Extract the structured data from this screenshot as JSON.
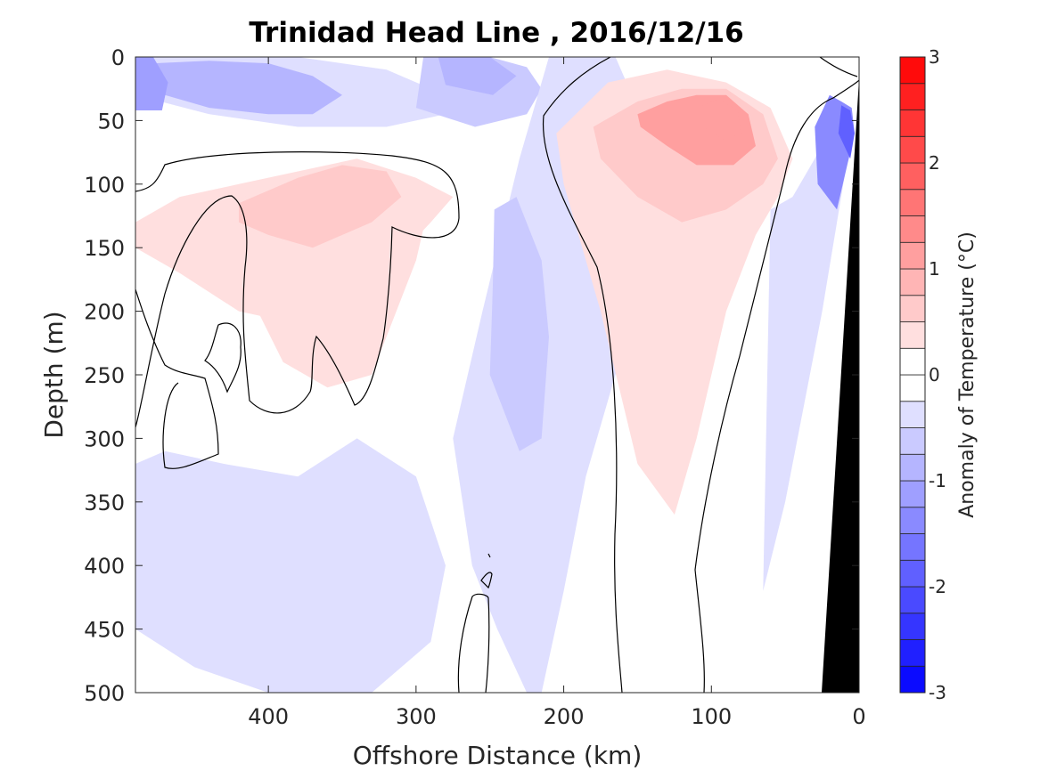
{
  "chart_data": {
    "type": "heatmap",
    "title": "Trinidad Head Line , 2016/12/16",
    "xlabel": "Offshore Distance (km)",
    "ylabel": "Depth (m)",
    "colorbar_label": "Anomaly of Temperature (°C)",
    "x_axis": {
      "range": [
        490,
        0
      ],
      "reversed": true,
      "ticks": [
        400,
        300,
        200,
        100,
        0
      ]
    },
    "y_axis": {
      "range": [
        0,
        500
      ],
      "reversed": true,
      "ticks": [
        0,
        50,
        100,
        150,
        200,
        250,
        300,
        350,
        400,
        450,
        500
      ]
    },
    "colorbar": {
      "range": [
        -3,
        3
      ],
      "ticks": [
        3,
        2,
        1,
        0,
        -1,
        -2,
        -3
      ],
      "levels": 24,
      "cmap": "blue-white-red",
      "position": "right"
    },
    "contour_level": 0,
    "bathymetry_color": "#000000",
    "grid": false,
    "features": [
      {
        "kind": "anomaly",
        "x": [
          490,
          440,
          380,
          320,
          280,
          280,
          320,
          380,
          440,
          490
        ],
        "y": [
          0,
          0,
          0,
          10,
          30,
          45,
          55,
          55,
          45,
          30
        ],
        "value": -0.5
      },
      {
        "kind": "anomaly",
        "x": [
          478,
          440,
          400,
          370,
          350,
          370,
          400,
          440,
          470
        ],
        "y": [
          5,
          3,
          5,
          15,
          30,
          45,
          45,
          40,
          30
        ],
        "value": -0.8
      },
      {
        "kind": "anomaly",
        "x": [
          490,
          478,
          468,
          472,
          490
        ],
        "y": [
          0,
          0,
          20,
          42,
          42
        ],
        "value": -1.1
      },
      {
        "kind": "anomaly",
        "x": [
          295,
          250,
          225,
          215,
          225,
          260,
          300
        ],
        "y": [
          0,
          0,
          8,
          25,
          45,
          55,
          40
        ],
        "value": -0.6
      },
      {
        "kind": "anomaly",
        "x": [
          285,
          250,
          232,
          248,
          280
        ],
        "y": [
          0,
          0,
          15,
          30,
          22
        ],
        "value": -0.9
      },
      {
        "kind": "anomaly",
        "x": [
          210,
          165,
          150,
          150,
          160,
          185,
          200,
          215,
          225,
          245,
          262,
          275,
          255,
          230
        ],
        "y": [
          0,
          0,
          40,
          120,
          230,
          330,
          420,
          500,
          500,
          450,
          400,
          300,
          200,
          80
        ],
        "value": -0.4
      },
      {
        "kind": "anomaly",
        "x": [
          247,
          232,
          215,
          210,
          215,
          230,
          250,
          248
        ],
        "y": [
          120,
          110,
          160,
          220,
          300,
          310,
          250,
          180
        ],
        "value": -0.7
      },
      {
        "kind": "anomaly",
        "x": [
          490,
          470,
          430,
          380,
          340,
          300,
          280,
          290,
          330,
          400,
          450,
          490
        ],
        "y": [
          320,
          310,
          320,
          330,
          300,
          330,
          400,
          460,
          500,
          500,
          480,
          450
        ],
        "value": -0.4
      },
      {
        "kind": "anomaly",
        "x": [
          440,
          400,
          350,
          320,
          310,
          330,
          360,
          400,
          440
        ],
        "y": [
          420,
          400,
          380,
          390,
          420,
          460,
          500,
          500,
          480
        ],
        "value": -0.5
      },
      {
        "kind": "anomaly",
        "x": [
          60,
          45,
          30,
          18,
          5,
          25,
          50,
          65
        ],
        "y": [
          120,
          110,
          80,
          50,
          60,
          200,
          350,
          420
        ],
        "value": -0.5
      },
      {
        "kind": "anomaly",
        "x": [
          20,
          12,
          5,
          3,
          15,
          28,
          30
        ],
        "y": [
          30,
          35,
          40,
          60,
          120,
          100,
          55
        ],
        "value": -1.3
      },
      {
        "kind": "anomaly",
        "x": [
          12,
          6,
          3,
          6,
          14
        ],
        "y": [
          38,
          42,
          60,
          80,
          60
        ],
        "value": -1.9
      },
      {
        "kind": "anomaly",
        "x": [
          490,
          460,
          420,
          380,
          340,
          300,
          275,
          290,
          330,
          380,
          420,
          460,
          490
        ],
        "y": [
          130,
          110,
          100,
          90,
          80,
          95,
          110,
          130,
          180,
          210,
          200,
          170,
          150
        ],
        "value": 0.3
      },
      {
        "kind": "anomaly",
        "x": [
          430,
          390,
          350,
          320,
          290,
          300,
          330,
          360,
          390,
          420
        ],
        "y": [
          115,
          100,
          90,
          95,
          110,
          160,
          250,
          260,
          240,
          170
        ],
        "value": 0.4
      },
      {
        "kind": "anomaly",
        "x": [
          420,
          380,
          350,
          320,
          310,
          330,
          370,
          400,
          420
        ],
        "y": [
          115,
          95,
          85,
          90,
          110,
          130,
          150,
          140,
          130
        ],
        "value": 0.6
      },
      {
        "kind": "anomaly",
        "x": [
          205,
          170,
          130,
          90,
          60,
          45,
          55,
          70,
          90,
          110,
          125,
          150,
          175,
          200
        ],
        "y": [
          60,
          20,
          10,
          20,
          40,
          80,
          110,
          140,
          200,
          300,
          360,
          320,
          200,
          100
        ],
        "value": 0.4
      },
      {
        "kind": "anomaly",
        "x": [
          180,
          150,
          120,
          90,
          65,
          55,
          65,
          90,
          120,
          150,
          175
        ],
        "y": [
          55,
          35,
          25,
          25,
          45,
          80,
          100,
          120,
          130,
          110,
          80
        ],
        "value": 0.7
      },
      {
        "kind": "anomaly",
        "x": [
          150,
          130,
          110,
          90,
          75,
          70,
          85,
          110,
          130,
          148
        ],
        "y": [
          45,
          35,
          30,
          30,
          45,
          70,
          85,
          85,
          70,
          55
        ],
        "value": 1.0
      },
      {
        "kind": "anomaly",
        "x": [
          110,
          95,
          82,
          80,
          92,
          105
        ],
        "y": [
          40,
          33,
          42,
          60,
          65,
          55
        ],
        "value": 1.2
      }
    ]
  }
}
